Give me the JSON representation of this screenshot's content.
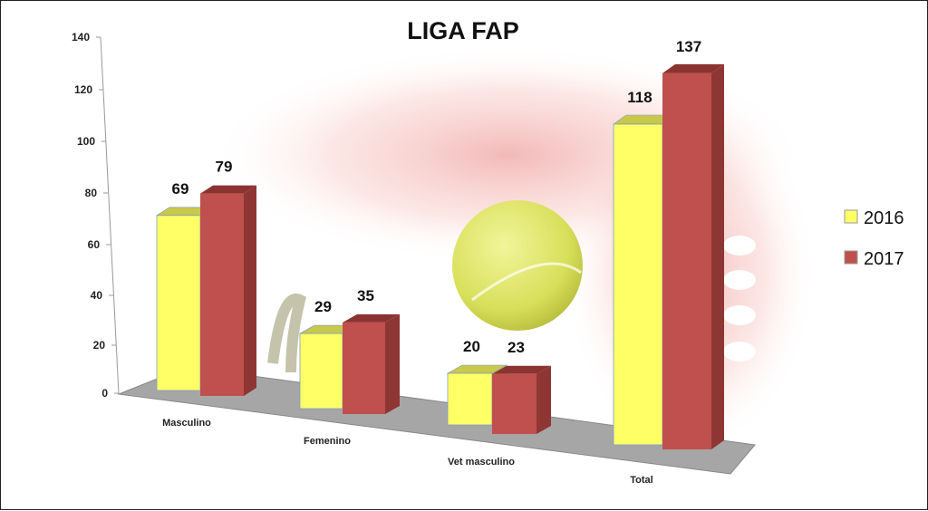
{
  "chart_data": {
    "type": "bar",
    "title": "LIGA FAP",
    "categories": [
      "Masculino",
      "Femenino",
      "Vet masculino",
      "Total"
    ],
    "series": [
      {
        "name": "2016",
        "values": [
          69,
          29,
          20,
          118
        ],
        "color": "#FFFF66"
      },
      {
        "name": "2017",
        "values": [
          79,
          35,
          23,
          137
        ],
        "color": "#C0504D"
      }
    ],
    "yticks": [
      "0",
      "20",
      "40",
      "60",
      "80",
      "100",
      "120",
      "140"
    ],
    "ylim": [
      0,
      140
    ],
    "legend_position": "right",
    "style": "3d-perspective",
    "grid": false
  }
}
